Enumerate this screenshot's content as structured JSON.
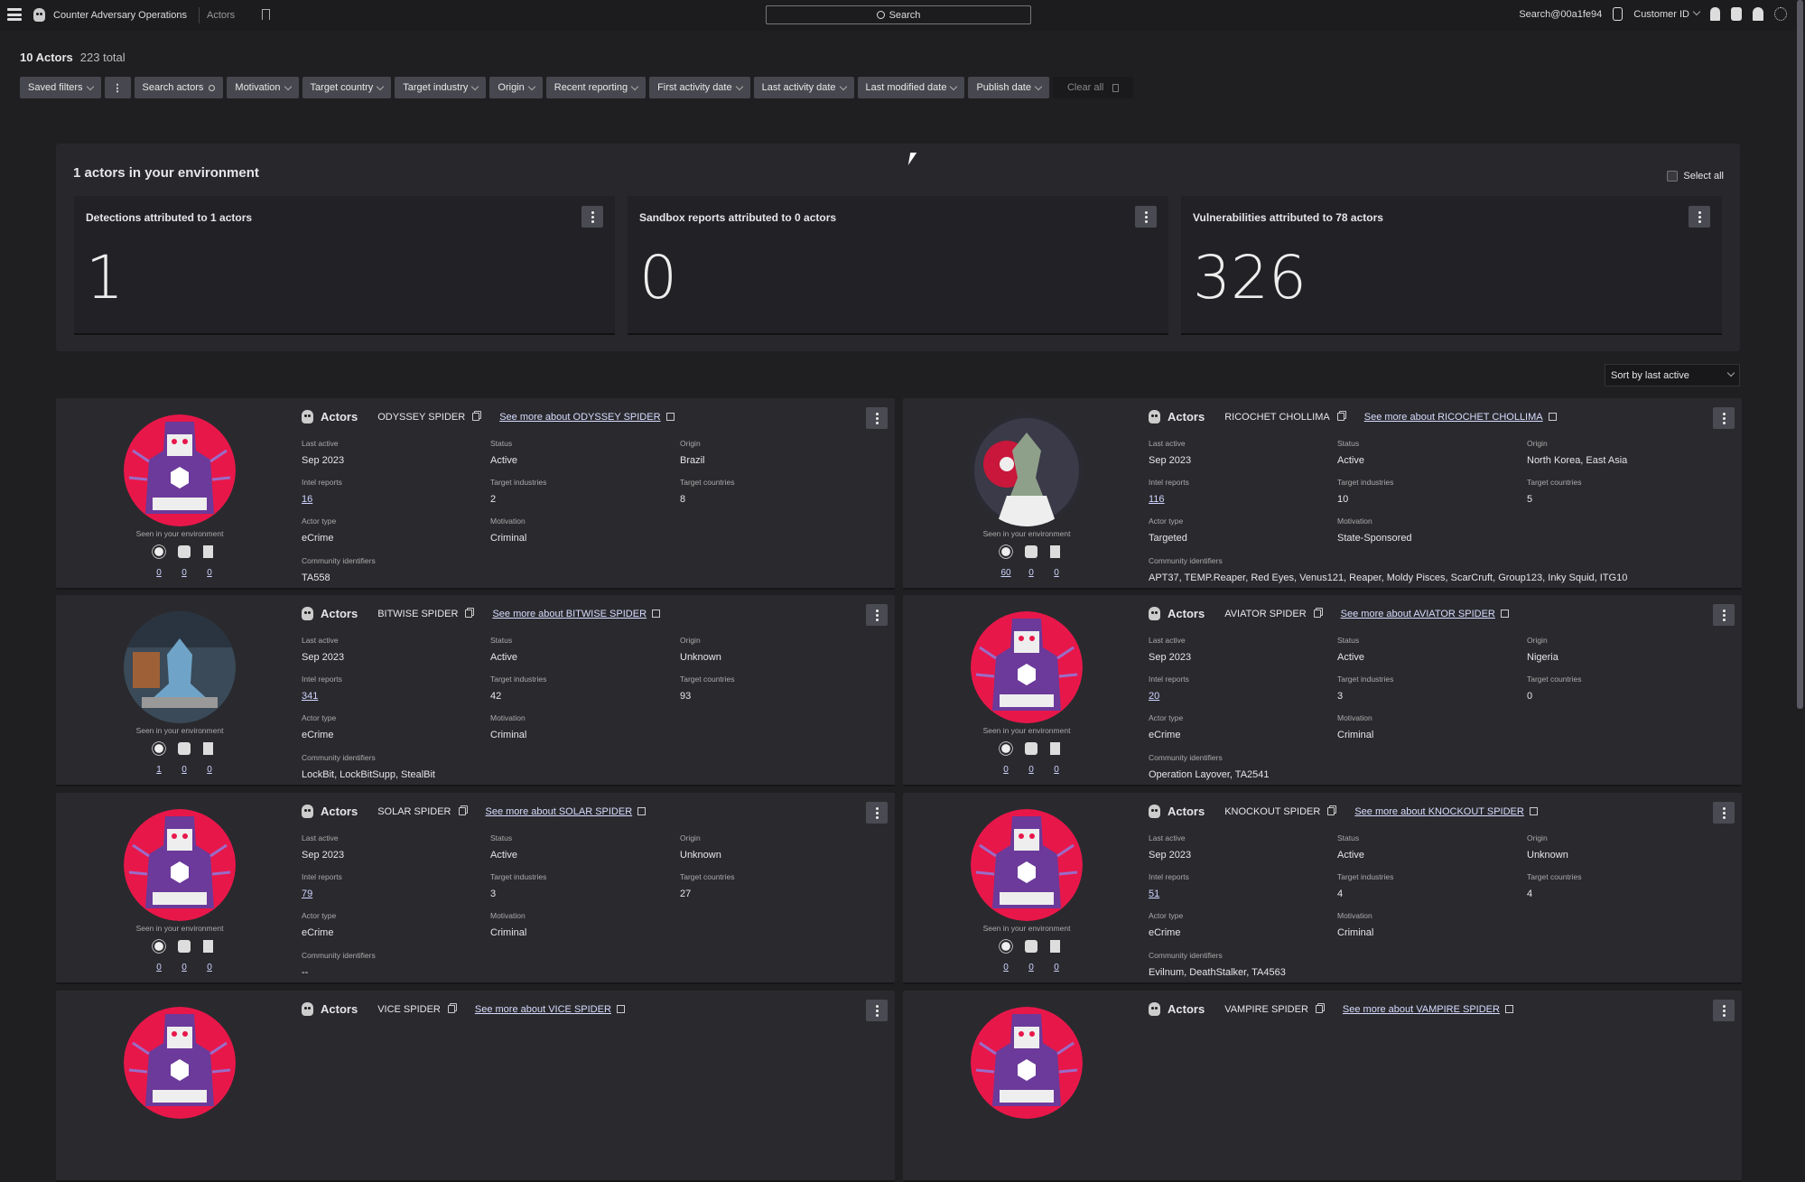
{
  "topbar": {
    "app_name": "Counter Adversary Operations",
    "breadcrumb": "Actors",
    "search_label": "Search",
    "user": "Search@00a1fe94",
    "customer_id": "Customer ID"
  },
  "summary": {
    "count": "10 Actors",
    "total": "223 total"
  },
  "filters": [
    "Saved filters",
    "Search actors",
    "Motivation",
    "Target country",
    "Target industry",
    "Origin",
    "Recent reporting",
    "First activity date",
    "Last activity date",
    "Last modified date",
    "Publish date"
  ],
  "clear_all": "Clear all",
  "environment": {
    "title": "1 actors in your environment",
    "select_all": "Select all",
    "stats": [
      {
        "title": "Detections attributed to 1 actors",
        "value": "1"
      },
      {
        "title": "Sandbox reports attributed to 0 actors",
        "value": "0"
      },
      {
        "title": "Vulnerabilities attributed to 78 actors",
        "value": "326"
      }
    ]
  },
  "sort": "Sort by last active",
  "labels": {
    "category": "Actors",
    "see_more_prefix": "See more about",
    "seen": "Seen in your environment",
    "last_active": "Last active",
    "status": "Status",
    "origin": "Origin",
    "intel_reports": "Intel reports",
    "target_industries": "Target industries",
    "target_countries": "Target countries",
    "actor_type": "Actor type",
    "motivation": "Motivation",
    "community": "Community identifiers"
  },
  "actors": [
    {
      "name": "ODYSSEY SPIDER",
      "last_active": "Sep 2023",
      "status": "Active",
      "origin": "Brazil",
      "intel_reports": "16",
      "target_industries": "2",
      "target_countries": "8",
      "actor_type": "eCrime",
      "motivation": "Criminal",
      "community": "TA558",
      "seen": [
        "0",
        "0",
        "0"
      ],
      "avatar": "spider"
    },
    {
      "name": "RICOCHET CHOLLIMA",
      "last_active": "Sep 2023",
      "status": "Active",
      "origin": "North Korea, East Asia",
      "intel_reports": "116",
      "target_industries": "10",
      "target_countries": "5",
      "actor_type": "Targeted",
      "motivation": "State-Sponsored",
      "community": "APT37, TEMP.Reaper, Red Eyes, Venus121, Reaper, Moldy Pisces, ScarCruft, Group123, Inky Squid, ITG10",
      "seen": [
        "60",
        "0",
        "0"
      ],
      "avatar": "chollima"
    },
    {
      "name": "BITWISE SPIDER",
      "last_active": "Sep 2023",
      "status": "Active",
      "origin": "Unknown",
      "intel_reports": "341",
      "target_industries": "42",
      "target_countries": "93",
      "actor_type": "eCrime",
      "motivation": "Criminal",
      "community": "LockBit, LockBitSupp, StealBit",
      "seen": [
        "1",
        "0",
        "0"
      ],
      "avatar": "bitwise"
    },
    {
      "name": "AVIATOR SPIDER",
      "last_active": "Sep 2023",
      "status": "Active",
      "origin": "Nigeria",
      "intel_reports": "20",
      "target_industries": "3",
      "target_countries": "0",
      "actor_type": "eCrime",
      "motivation": "Criminal",
      "community": "Operation Layover, TA2541",
      "seen": [
        "0",
        "0",
        "0"
      ],
      "avatar": "spider"
    },
    {
      "name": "SOLAR SPIDER",
      "last_active": "Sep 2023",
      "status": "Active",
      "origin": "Unknown",
      "intel_reports": "79",
      "target_industries": "3",
      "target_countries": "27",
      "actor_type": "eCrime",
      "motivation": "Criminal",
      "community": "--",
      "seen": [
        "0",
        "0",
        "0"
      ],
      "avatar": "spider"
    },
    {
      "name": "KNOCKOUT SPIDER",
      "last_active": "Sep 2023",
      "status": "Active",
      "origin": "Unknown",
      "intel_reports": "51",
      "target_industries": "4",
      "target_countries": "4",
      "actor_type": "eCrime",
      "motivation": "Criminal",
      "community": "Evilnum, DeathStalker, TA4563",
      "seen": [
        "0",
        "0",
        "0"
      ],
      "avatar": "spider"
    },
    {
      "name": "VICE SPIDER",
      "avatar": "spider"
    },
    {
      "name": "VAMPIRE SPIDER",
      "avatar": "spider"
    }
  ],
  "colors": {
    "accent_link": "#cfd3ff",
    "avatar_red": "#e8174a",
    "avatar_purple": "#6b3a9a"
  }
}
